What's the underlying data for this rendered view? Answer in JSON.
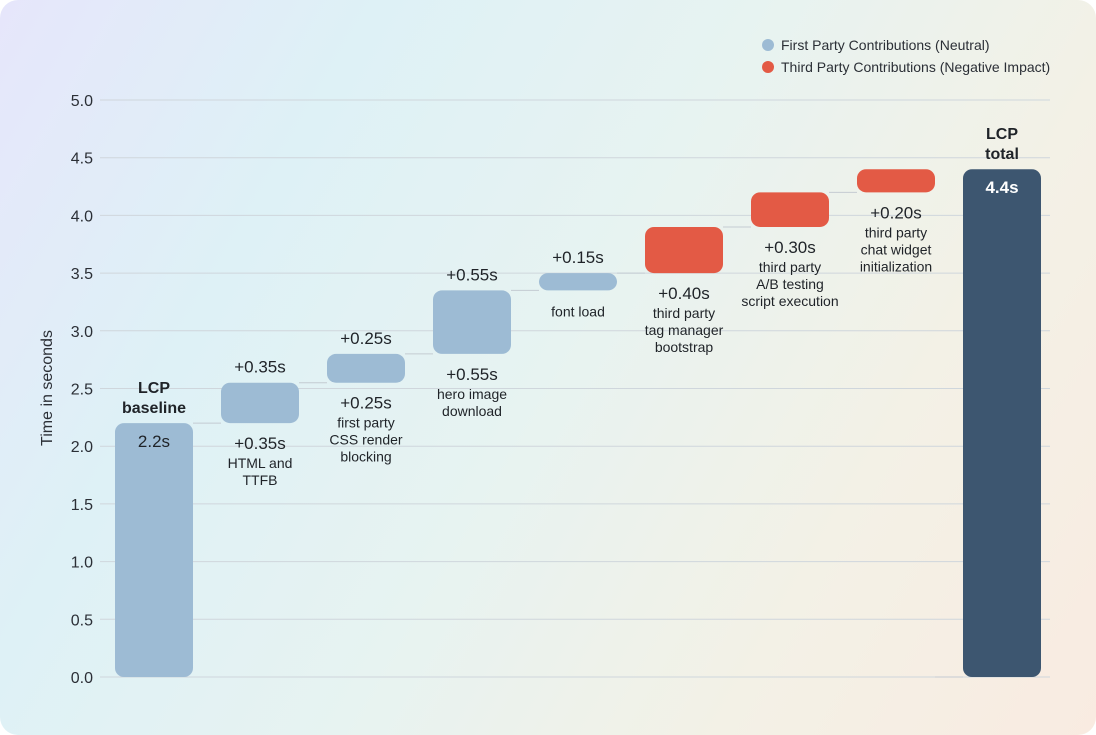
{
  "chart_data": {
    "type": "waterfall",
    "ylabel": "Time in seconds",
    "ylim": [
      0,
      5.0
    ],
    "yticks": [
      "0.0",
      "0.5",
      "1.0",
      "1.5",
      "2.0",
      "2.5",
      "3.0",
      "3.5",
      "4.0",
      "4.5",
      "5.0"
    ],
    "grid": true,
    "legend_position": "top-right",
    "legend": [
      {
        "label": "First Party Contributions (Neutral)",
        "color": "#9dbbd4"
      },
      {
        "label": "Third Party Contributions (Negative Impact)",
        "color": "#e35a45"
      }
    ],
    "colors": {
      "first_party": "#9dbbd4",
      "third_party": "#e35a45",
      "total": "#3d5670"
    },
    "bars": [
      {
        "kind": "base",
        "value": 2.2,
        "top_label": [
          "LCP",
          "baseline"
        ],
        "inside_label": "2.2s",
        "bottom_lines": []
      },
      {
        "kind": "first_party",
        "value": 0.35,
        "top_label": [
          "+0.35s"
        ],
        "bottom_lines": [
          "+0.35s",
          "HTML and",
          "TTFB"
        ]
      },
      {
        "kind": "first_party",
        "value": 0.25,
        "top_label": [
          "+0.25s"
        ],
        "bottom_lines": [
          "+0.25s",
          "first party",
          "CSS render",
          "blocking"
        ]
      },
      {
        "kind": "first_party",
        "value": 0.55,
        "top_label": [
          "+0.55s"
        ],
        "bottom_lines": [
          "+0.55s",
          "hero image",
          "download"
        ]
      },
      {
        "kind": "first_party",
        "value": 0.15,
        "top_label": [
          "+0.15s"
        ],
        "bottom_lines": [
          "font load"
        ]
      },
      {
        "kind": "third_party",
        "value": 0.4,
        "top_label": [],
        "bottom_lines": [
          "+0.40s",
          "third party",
          "tag manager",
          "bootstrap"
        ]
      },
      {
        "kind": "third_party",
        "value": 0.3,
        "top_label": [],
        "bottom_lines": [
          "+0.30s",
          "third party",
          "A/B testing",
          "script execution"
        ]
      },
      {
        "kind": "third_party",
        "value": 0.2,
        "top_label": [],
        "bottom_lines": [
          "+0.20s",
          "third party",
          "chat widget",
          "initialization"
        ]
      },
      {
        "kind": "total",
        "value": 4.4,
        "top_label": [
          "LCP",
          "total"
        ],
        "inside_label": "4.4s",
        "bottom_lines": []
      }
    ]
  }
}
